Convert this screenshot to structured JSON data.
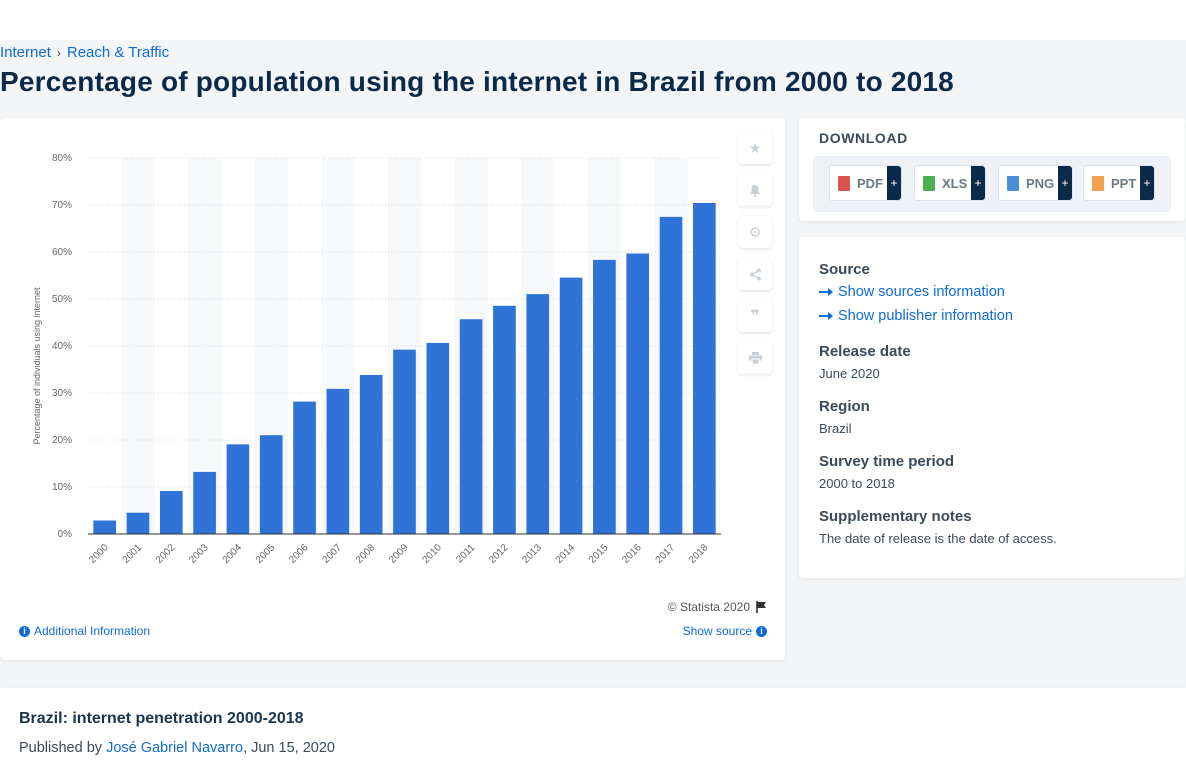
{
  "breadcrumb": {
    "items": [
      "Internet",
      "Reach & Traffic"
    ]
  },
  "page": {
    "title": "Percentage of population using the internet in Brazil from 2000 to 2018"
  },
  "chart_data": {
    "type": "bar",
    "title": "",
    "xlabel": "",
    "ylabel": "Percentage of individuals using internet",
    "categories": [
      "2000",
      "2001",
      "2002",
      "2003",
      "2004",
      "2005",
      "2006",
      "2007",
      "2008",
      "2009",
      "2010",
      "2011",
      "2012",
      "2013",
      "2014",
      "2015",
      "2016",
      "2017",
      "2018"
    ],
    "values": [
      2.87,
      4.53,
      9.15,
      13.21,
      19.07,
      21.02,
      28.18,
      30.88,
      33.83,
      39.22,
      40.65,
      45.69,
      48.56,
      51.04,
      54.55,
      58.33,
      59.68,
      67.47,
      70.43
    ],
    "ylim": [
      0,
      80
    ],
    "yticks": [
      "0%",
      "10%",
      "20%",
      "30%",
      "40%",
      "50%",
      "60%",
      "70%",
      "80%"
    ],
    "grid": true,
    "bar_color": "#2f73d9"
  },
  "chart_footer": {
    "copyright": "© Statista 2020",
    "additional_info": "Additional Information",
    "show_source": "Show source"
  },
  "toolbar": {
    "icons": [
      "star-icon",
      "bell-icon",
      "gear-icon",
      "share-icon",
      "quote-icon",
      "print-icon"
    ]
  },
  "download": {
    "title": "DOWNLOAD",
    "formats": [
      {
        "label": "PDF",
        "color": "#d9534f"
      },
      {
        "label": "XLS",
        "color": "#4caf50"
      },
      {
        "label": "PNG",
        "color": "#4a90d9"
      },
      {
        "label": "PPT",
        "color": "#f0a050"
      }
    ],
    "plus": "+"
  },
  "meta": {
    "source_heading": "Source",
    "show_sources": "Show sources information",
    "show_publisher": "Show publisher information",
    "release_heading": "Release date",
    "release_value": "June 2020",
    "region_heading": "Region",
    "region_value": "Brazil",
    "survey_heading": "Survey time period",
    "survey_value": "2000 to 2018",
    "notes_heading": "Supplementary notes",
    "notes_value": "The date of release is the date of access."
  },
  "bottom": {
    "title": "Brazil: internet penetration 2000-2018",
    "published_by": "Published by",
    "author": "José Gabriel Navarro",
    "date": ", Jun 15, 2020"
  }
}
